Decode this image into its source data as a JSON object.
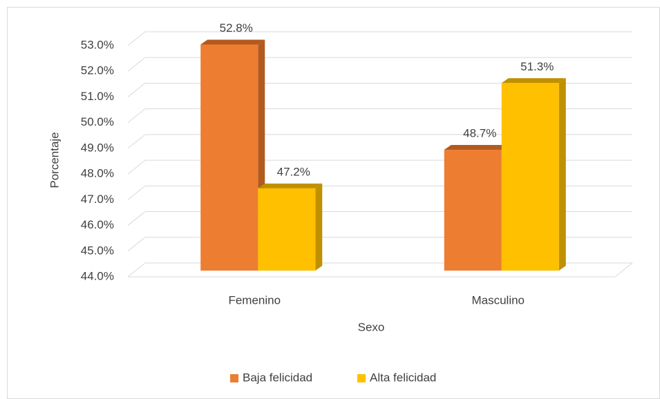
{
  "chart_data": {
    "type": "bar3d",
    "categories": [
      "Femenino",
      "Masculino"
    ],
    "series": [
      {
        "name": "Baja felicidad",
        "color": "#ED7D31",
        "side_color": "#B35A1F",
        "values": [
          52.8,
          48.7
        ],
        "value_labels": [
          "52.8%",
          "48.7%"
        ]
      },
      {
        "name": "Alta felicidad",
        "color": "#FFC000",
        "side_color": "#BF9000",
        "values": [
          47.2,
          51.3
        ],
        "value_labels": [
          "47.2%",
          "51.3%"
        ]
      }
    ],
    "ylim": [
      44,
      53
    ],
    "yticks": [
      {
        "value": 44,
        "label": "44.0%"
      },
      {
        "value": 45,
        "label": "45.0%"
      },
      {
        "value": 46,
        "label": "46.0%"
      },
      {
        "value": 47,
        "label": "47.0%"
      },
      {
        "value": 48,
        "label": "48.0%"
      },
      {
        "value": 49,
        "label": "49.0%"
      },
      {
        "value": 50,
        "label": "50.0%"
      },
      {
        "value": 51,
        "label": "51.0%"
      },
      {
        "value": 52,
        "label": "52.0%"
      },
      {
        "value": 53,
        "label": "53.0%"
      }
    ],
    "x_label": "Sexo",
    "y_label": "Porcentaje",
    "grid": true,
    "legend": "bottom"
  }
}
